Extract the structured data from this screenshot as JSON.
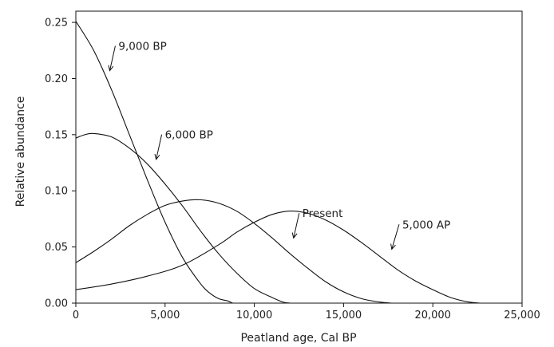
{
  "chart_data": {
    "type": "line",
    "xlabel": "Peatland age, Cal BP",
    "ylabel": "Relative abundance",
    "xlim": [
      0,
      25000
    ],
    "ylim": [
      0,
      0.26
    ],
    "x_ticks": [
      0,
      5000,
      10000,
      15000,
      20000,
      25000
    ],
    "x_tick_labels": [
      "0",
      "5,000",
      "10,000",
      "15,000",
      "20,000",
      "25,000"
    ],
    "y_ticks": [
      0,
      0.05,
      0.1,
      0.15,
      0.2,
      0.25
    ],
    "y_tick_labels": [
      "0.00",
      "0.05",
      "0.10",
      "0.15",
      "0.20",
      "0.25"
    ],
    "grid": false,
    "series": [
      {
        "name": "9,000 BP",
        "x": [
          0,
          1000,
          2000,
          3000,
          4000,
          5000,
          6000,
          7000,
          7500,
          8000,
          8500,
          8800,
          9000
        ],
        "y": [
          0.251,
          0.225,
          0.19,
          0.15,
          0.11,
          0.072,
          0.04,
          0.017,
          0.009,
          0.004,
          0.002,
          0.0,
          0.0
        ]
      },
      {
        "name": "6,000 BP",
        "x": [
          0,
          500,
          1000,
          2000,
          3000,
          4000,
          5000,
          6000,
          7000,
          8000,
          9000,
          10000,
          11000,
          11600,
          12000
        ],
        "y": [
          0.147,
          0.15,
          0.151,
          0.148,
          0.138,
          0.124,
          0.106,
          0.086,
          0.064,
          0.044,
          0.027,
          0.013,
          0.005,
          0.001,
          0.0
        ]
      },
      {
        "name": "5,000 AP",
        "x": [
          0,
          1000,
          2000,
          3000,
          4000,
          5000,
          6000,
          7000,
          8000,
          9000,
          10000,
          11000,
          12000,
          13000,
          14000,
          15000,
          16000,
          17000,
          17700,
          18000
        ],
        "y": [
          0.036,
          0.046,
          0.057,
          0.069,
          0.079,
          0.087,
          0.091,
          0.092,
          0.089,
          0.082,
          0.071,
          0.058,
          0.044,
          0.031,
          0.019,
          0.01,
          0.004,
          0.001,
          0.0,
          0.0
        ]
      },
      {
        "name": "Present",
        "x": [
          0,
          2000,
          4000,
          6000,
          8000,
          9000,
          10000,
          11000,
          12000,
          13000,
          14000,
          15000,
          16000,
          17000,
          18000,
          19000,
          20000,
          21000,
          22000,
          22700,
          23000
        ],
        "y": [
          0.012,
          0.017,
          0.024,
          0.034,
          0.052,
          0.063,
          0.072,
          0.079,
          0.082,
          0.08,
          0.074,
          0.065,
          0.054,
          0.042,
          0.03,
          0.02,
          0.012,
          0.005,
          0.001,
          0.0,
          0.0
        ]
      }
    ],
    "annotations": [
      {
        "text": "9,000 BP",
        "x": 2300,
        "y": 0.227,
        "arrow_to": [
          1900,
          0.207
        ]
      },
      {
        "text": "6,000 BP",
        "x": 4900,
        "y": 0.148,
        "arrow_to": [
          4500,
          0.128
        ]
      },
      {
        "text": "Present",
        "x": 12600,
        "y": 0.078,
        "arrow_to": [
          12200,
          0.058
        ]
      },
      {
        "text": "5,000 AP",
        "x": 18200,
        "y": 0.068,
        "arrow_to": [
          17700,
          0.048
        ]
      }
    ]
  }
}
